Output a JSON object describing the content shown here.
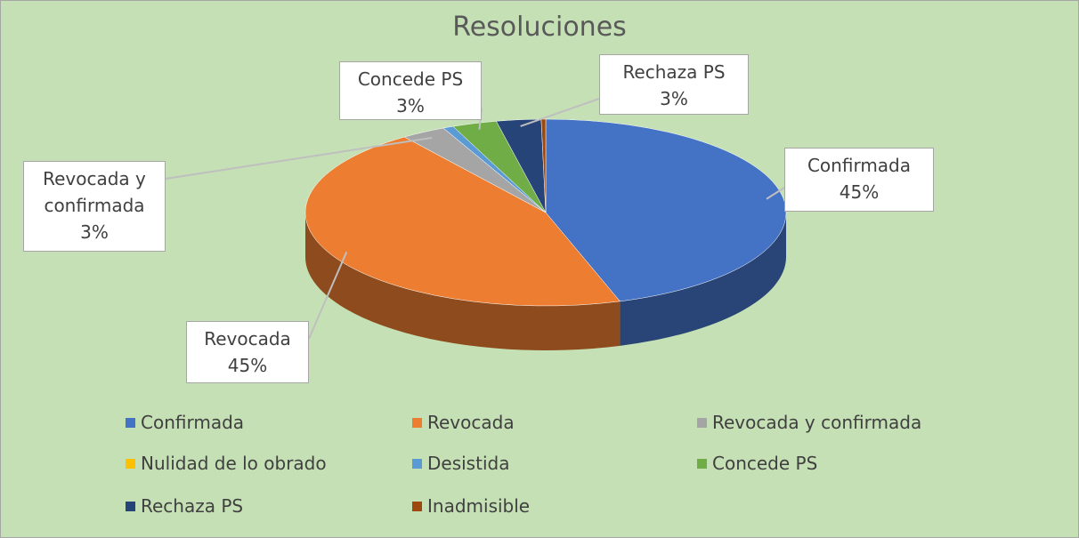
{
  "chart_data": {
    "type": "pie",
    "title": "Resoluciones",
    "categories": [
      "Confirmada",
      "Revocada",
      "Revocada y confirmada",
      "Nulidad de lo obrado",
      "Desistida",
      "Concede PS",
      "Rechaza PS",
      "Inadmisible"
    ],
    "values": [
      45,
      45,
      3,
      0,
      0.7,
      3,
      3,
      0.3
    ],
    "value_labels": [
      "45%",
      "45%",
      "3%",
      null,
      null,
      "3%",
      "3%",
      null
    ],
    "colors": [
      "#4472c4",
      "#ed7d31",
      "#a5a5a5",
      "#ffc000",
      "#5b9bd5",
      "#70ad47",
      "#264478",
      "#9e480e"
    ],
    "legend": "bottom"
  }
}
